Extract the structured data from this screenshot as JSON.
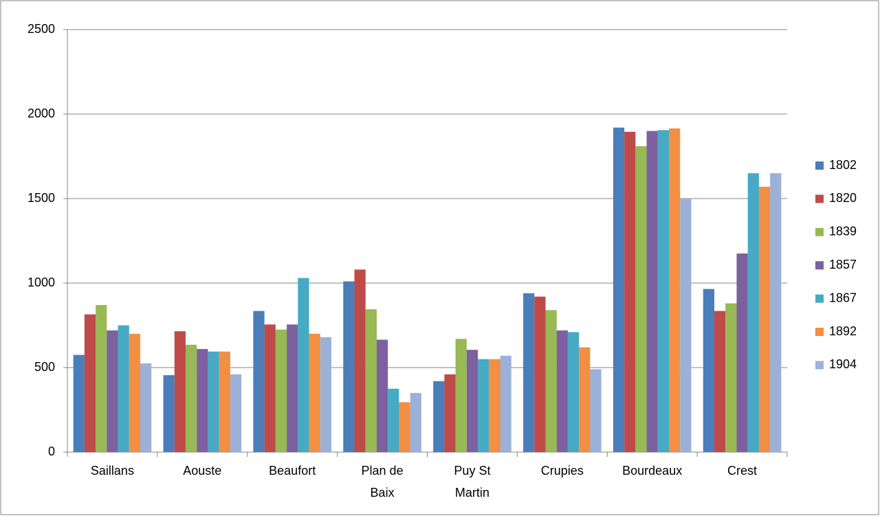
{
  "chart_data": {
    "type": "bar",
    "categories": [
      "Saillans",
      "Aouste",
      "Beaufort",
      "Plan de Baix",
      "Puy St Martin",
      "Crupies",
      "Bourdeaux",
      "Crest"
    ],
    "series": [
      {
        "name": "1802",
        "color": "#4a7ebb",
        "values": [
          575,
          455,
          835,
          1010,
          420,
          940,
          1920,
          965
        ]
      },
      {
        "name": "1820",
        "color": "#be4b48",
        "values": [
          815,
          715,
          755,
          1080,
          460,
          920,
          1895,
          835
        ]
      },
      {
        "name": "1839",
        "color": "#98b954",
        "values": [
          870,
          635,
          725,
          845,
          670,
          840,
          1810,
          880
        ]
      },
      {
        "name": "1857",
        "color": "#7d60a0",
        "values": [
          720,
          610,
          755,
          665,
          605,
          720,
          1900,
          1175
        ]
      },
      {
        "name": "1867",
        "color": "#46aac5",
        "values": [
          750,
          595,
          1030,
          375,
          550,
          710,
          1905,
          1650
        ]
      },
      {
        "name": "1892",
        "color": "#f38f43",
        "values": [
          700,
          595,
          700,
          295,
          550,
          620,
          1915,
          1570
        ]
      },
      {
        "name": "1904",
        "color": "#9bb1d8",
        "values": [
          525,
          460,
          680,
          350,
          570,
          490,
          1500,
          1650
        ]
      }
    ],
    "ylim": [
      0,
      2500
    ],
    "yticks": [
      0,
      500,
      1000,
      1500,
      2000,
      2500
    ],
    "grid": true,
    "legend": "right"
  }
}
